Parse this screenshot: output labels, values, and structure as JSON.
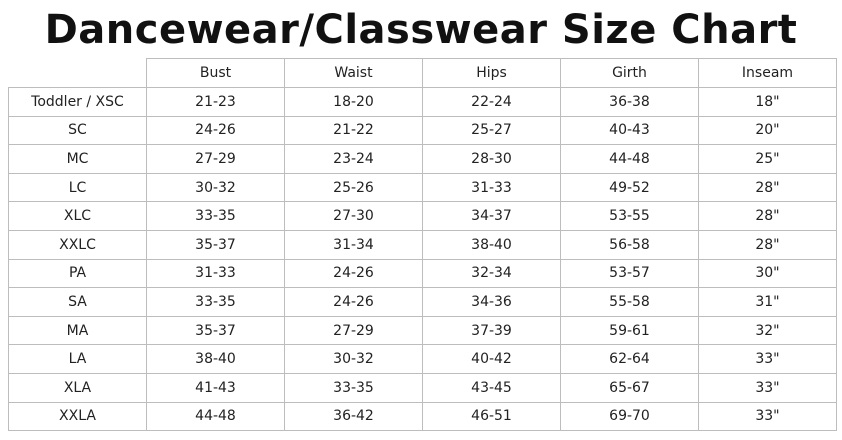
{
  "title": "Dancewear/Classwear Size Chart",
  "columns": [
    "",
    "Bust",
    "Waist",
    "Hips",
    "Girth",
    "Inseam"
  ],
  "rows": [
    {
      "size": "Toddler / XSC",
      "bust": "21-23",
      "waist": "18-20",
      "hips": "22-24",
      "girth": "36-38",
      "inseam": "18\""
    },
    {
      "size": "SC",
      "bust": "24-26",
      "waist": "21-22",
      "hips": "25-27",
      "girth": "40-43",
      "inseam": "20\""
    },
    {
      "size": "MC",
      "bust": "27-29",
      "waist": "23-24",
      "hips": "28-30",
      "girth": "44-48",
      "inseam": "25\""
    },
    {
      "size": "LC",
      "bust": "30-32",
      "waist": "25-26",
      "hips": "31-33",
      "girth": "49-52",
      "inseam": "28\""
    },
    {
      "size": "XLC",
      "bust": "33-35",
      "waist": "27-30",
      "hips": "34-37",
      "girth": "53-55",
      "inseam": "28\""
    },
    {
      "size": "XXLC",
      "bust": "35-37",
      "waist": "31-34",
      "hips": "38-40",
      "girth": "56-58",
      "inseam": "28\""
    },
    {
      "size": "PA",
      "bust": "31-33",
      "waist": "24-26",
      "hips": "32-34",
      "girth": "53-57",
      "inseam": "30\""
    },
    {
      "size": "SA",
      "bust": "33-35",
      "waist": "24-26",
      "hips": "34-36",
      "girth": "55-58",
      "inseam": "31\""
    },
    {
      "size": "MA",
      "bust": "35-37",
      "waist": "27-29",
      "hips": "37-39",
      "girth": "59-61",
      "inseam": "32\""
    },
    {
      "size": "LA",
      "bust": "38-40",
      "waist": "30-32",
      "hips": "40-42",
      "girth": "62-64",
      "inseam": "33\""
    },
    {
      "size": "XLA",
      "bust": "41-43",
      "waist": "33-35",
      "hips": "43-45",
      "girth": "65-67",
      "inseam": "33\""
    },
    {
      "size": "XXLA",
      "bust": "44-48",
      "waist": "36-42",
      "hips": "46-51",
      "girth": "69-70",
      "inseam": "33\""
    }
  ]
}
